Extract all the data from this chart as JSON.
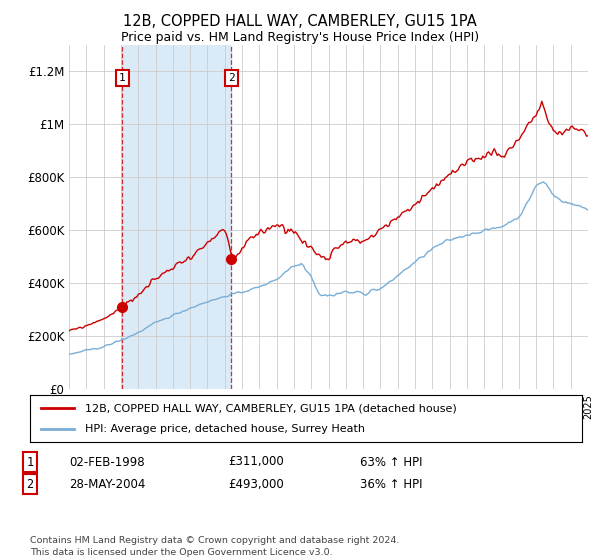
{
  "title1": "12B, COPPED HALL WAY, CAMBERLEY, GU15 1PA",
  "title2": "Price paid vs. HM Land Registry's House Price Index (HPI)",
  "ylim": [
    0,
    1300000
  ],
  "yticks": [
    0,
    200000,
    400000,
    600000,
    800000,
    1000000,
    1200000
  ],
  "ytick_labels": [
    "£0",
    "£200K",
    "£400K",
    "£600K",
    "£800K",
    "£1M",
    "£1.2M"
  ],
  "x_start_year": 1995,
  "x_end_year": 2025,
  "sale1_date": 1998.09,
  "sale1_price": 311000,
  "sale1_label": "1",
  "sale1_text": "02-FEB-1998",
  "sale1_amount": "£311,000",
  "sale1_hpi": "63% ↑ HPI",
  "sale2_date": 2004.39,
  "sale2_price": 493000,
  "sale2_label": "2",
  "sale2_text": "28-MAY-2004",
  "sale2_amount": "£493,000",
  "sale2_hpi": "36% ↑ HPI",
  "line_color_red": "#cc0000",
  "line_color_blue": "#7aaed6",
  "shade_color": "#daeaf7",
  "grid_color": "#cccccc",
  "legend_label_red": "12B, COPPED HALL WAY, CAMBERLEY, GU15 1PA (detached house)",
  "legend_label_blue": "HPI: Average price, detached house, Surrey Heath",
  "footnote": "Contains HM Land Registry data © Crown copyright and database right 2024.\nThis data is licensed under the Open Government Licence v3.0.",
  "background_color": "#ffffff"
}
